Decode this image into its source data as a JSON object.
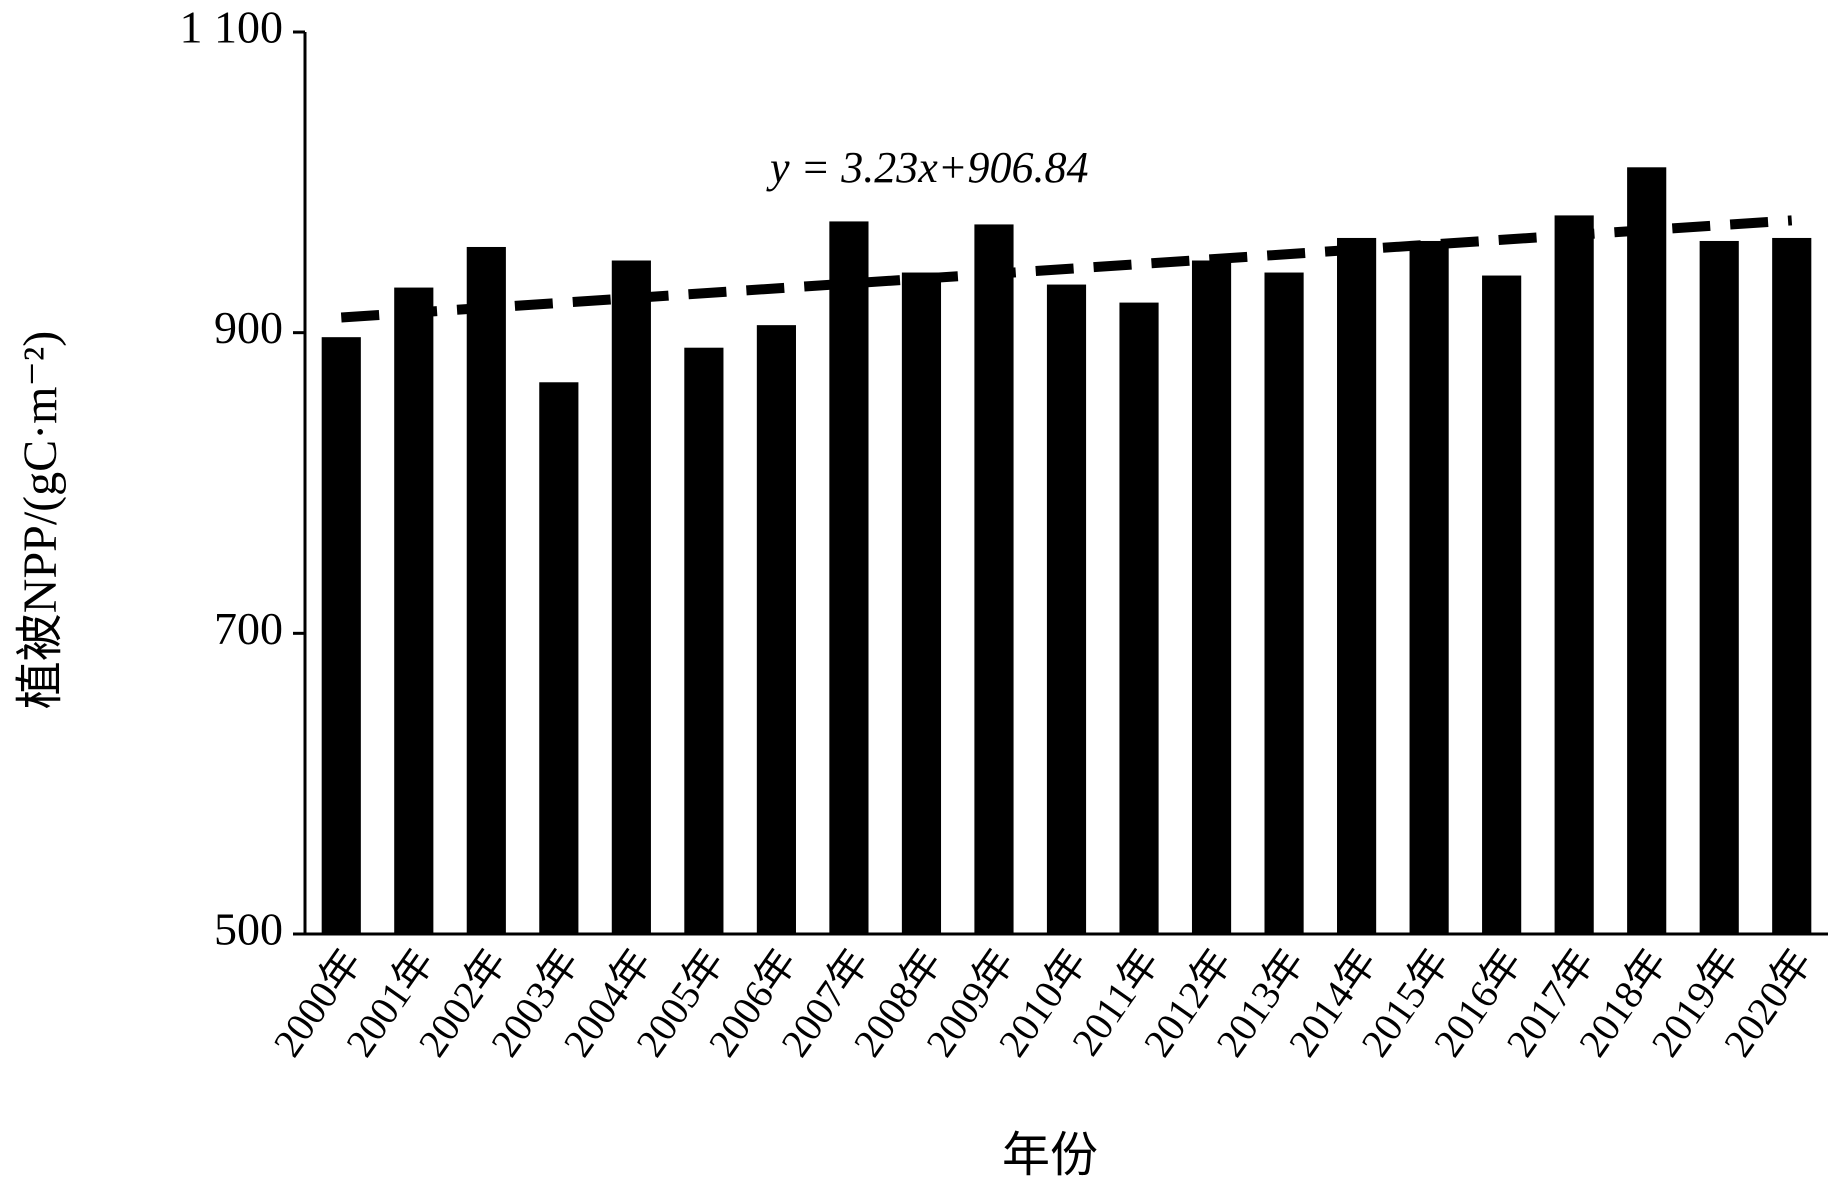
{
  "chart_data": {
    "type": "bar",
    "y_label": "植被NPP/(gC·m⁻²)",
    "x_label": "年份",
    "categories": [
      "2000年",
      "2001年",
      "2002年",
      "2003年",
      "2004年",
      "2005年",
      "2006年",
      "2007年",
      "2008年",
      "2009年",
      "2010年",
      "2011年",
      "2012年",
      "2013年",
      "2014年",
      "2015年",
      "2016年",
      "2017年",
      "2018年",
      "2019年",
      "2020年"
    ],
    "values": [
      897,
      930,
      957,
      867,
      948,
      890,
      905,
      974,
      940,
      972,
      932,
      920,
      948,
      940,
      963,
      961,
      938,
      978,
      1010,
      961,
      963
    ],
    "color": "#000000",
    "ylim": [
      500,
      1100
    ],
    "yticks": [
      500,
      700,
      900,
      {
        "value": 1100,
        "label": "1 100"
      }
    ],
    "annotation": "y = 3.23x+906.84",
    "trendline": {
      "slope": 3.23,
      "intercept": 906.84
    }
  }
}
